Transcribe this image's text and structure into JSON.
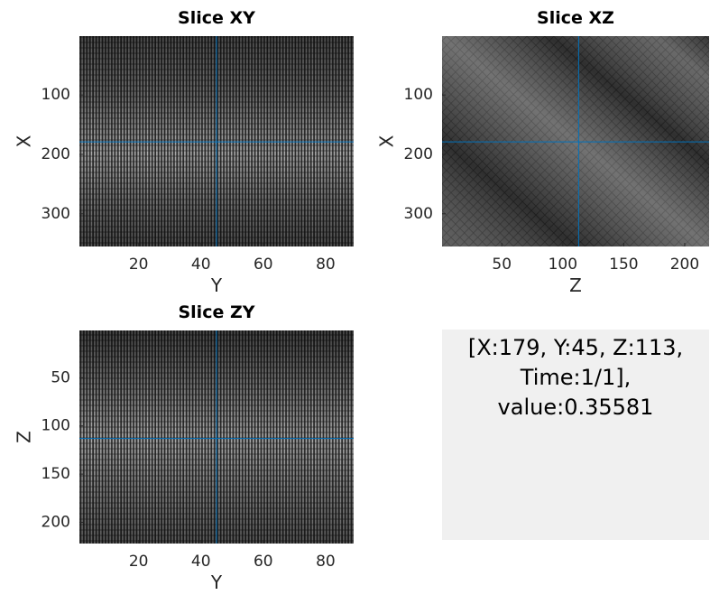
{
  "panels": [
    {
      "title": "Slice XY",
      "xlabel": "Y",
      "ylabel": "X",
      "xlim": [
        1,
        89
      ],
      "ylim": [
        1,
        355
      ],
      "xticks": [
        20,
        40,
        60,
        80
      ],
      "yticks": [
        100,
        200,
        300
      ],
      "crosshair": {
        "x": 45,
        "y": 179
      }
    },
    {
      "title": "Slice XZ",
      "xlabel": "Z",
      "ylabel": "X",
      "xlim": [
        1,
        220
      ],
      "ylim": [
        1,
        355
      ],
      "xticks": [
        50,
        100,
        150,
        200
      ],
      "yticks": [
        100,
        200,
        300
      ],
      "crosshair": {
        "x": 113,
        "y": 179
      }
    },
    {
      "title": "Slice ZY",
      "xlabel": "Y",
      "ylabel": "Z",
      "xlim": [
        1,
        89
      ],
      "ylim": [
        1,
        222
      ],
      "xticks": [
        20,
        40,
        60,
        80
      ],
      "yticks": [
        50,
        100,
        150,
        200
      ],
      "crosshair": {
        "x": 45,
        "y": 113
      }
    }
  ],
  "info": {
    "lines": [
      "[X:179, Y:45, Z:113,",
      "Time:1/1],",
      "value:0.35581"
    ]
  }
}
